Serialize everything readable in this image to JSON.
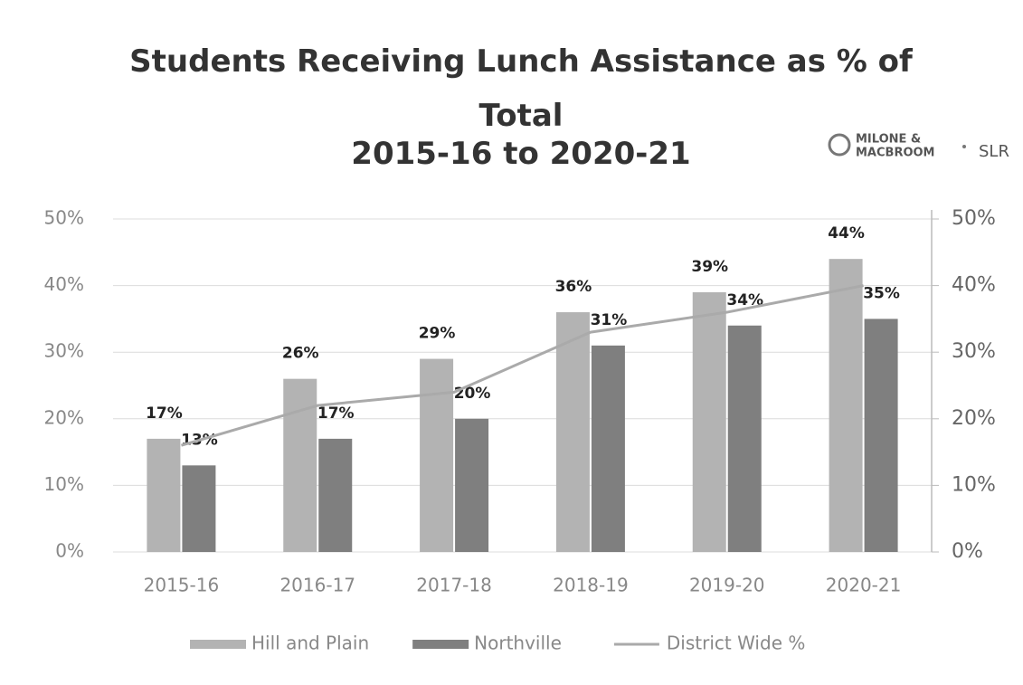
{
  "chart_data": {
    "type": "bar",
    "title": "Students Receiving Lunch Assistance as % of Total",
    "subtitle": "2015-16 to 2020-21",
    "categories": [
      "2015-16",
      "2016-17",
      "2017-18",
      "2018-19",
      "2019-20",
      "2020-21"
    ],
    "series": [
      {
        "name": "Hill and Plain",
        "type": "bar",
        "color": "#b3b3b3",
        "values": [
          17,
          26,
          29,
          36,
          39,
          44
        ],
        "value_labels": [
          "17%",
          "26%",
          "29%",
          "36%",
          "39%",
          "44%"
        ]
      },
      {
        "name": "Northville",
        "type": "bar",
        "color": "#7f7f7f",
        "values": [
          13,
          17,
          20,
          31,
          34,
          35
        ],
        "value_labels": [
          "13%",
          "17%",
          "20%",
          "31%",
          "34%",
          "35%"
        ]
      },
      {
        "name": "District Wide %",
        "type": "line",
        "axis": "y2",
        "color": "#aaaaaa",
        "values": [
          16,
          22,
          24,
          33,
          36,
          40
        ]
      }
    ],
    "ylim": [
      0,
      50
    ],
    "yticks": [
      {
        "value": 0,
        "label": "0%"
      },
      {
        "value": 10,
        "label": "10%"
      },
      {
        "value": 20,
        "label": "20%"
      },
      {
        "value": 30,
        "label": "30%"
      },
      {
        "value": 40,
        "label": "40%"
      },
      {
        "value": 50,
        "label": "50%"
      }
    ],
    "y2lim": [
      0,
      50
    ],
    "y2ticks": [
      {
        "value": 0,
        "label": "0%"
      },
      {
        "value": 10,
        "label": "10%"
      },
      {
        "value": 20,
        "label": "20%"
      },
      {
        "value": 30,
        "label": "30%"
      },
      {
        "value": 40,
        "label": "40%"
      },
      {
        "value": 50,
        "label": "50%"
      }
    ],
    "grid": true,
    "legend": "bottom"
  },
  "logo": [
    "MILONE &",
    "MACBROOM",
    "SLR"
  ]
}
